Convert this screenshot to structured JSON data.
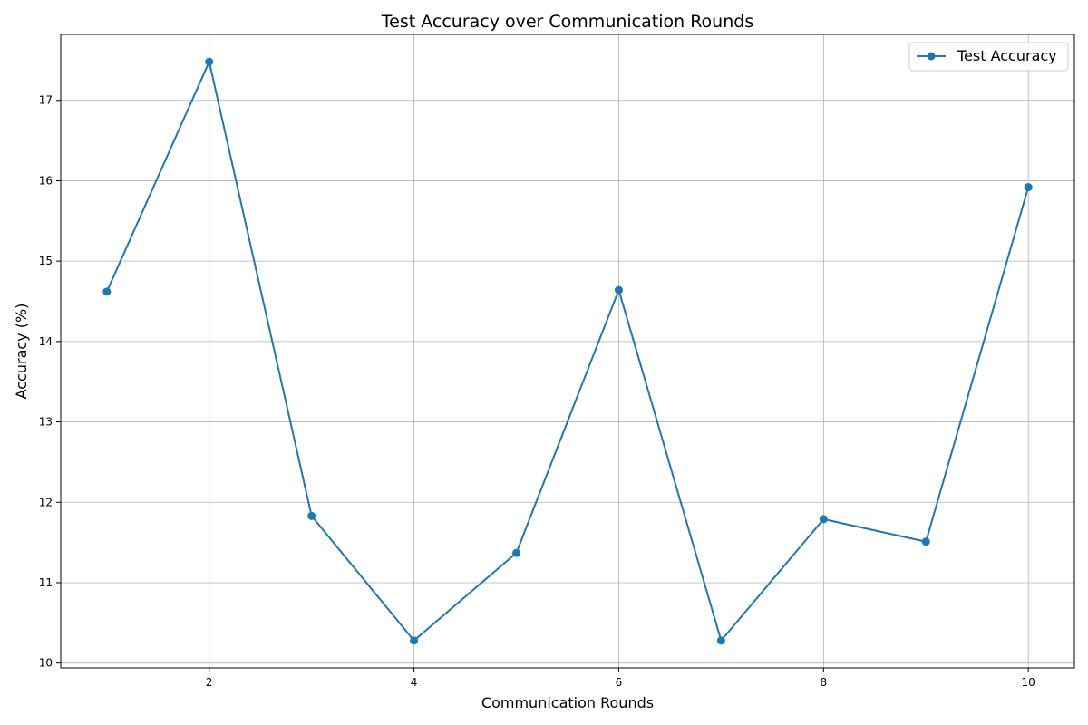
{
  "chart_data": {
    "type": "line",
    "title": "Test Accuracy over Communication Rounds",
    "xlabel": "Communication Rounds",
    "ylabel": "Accuracy (%)",
    "x": [
      1,
      2,
      3,
      4,
      5,
      6,
      7,
      8,
      9,
      10
    ],
    "series": [
      {
        "name": "Test Accuracy",
        "values": [
          14.62,
          17.48,
          11.83,
          10.28,
          11.37,
          14.64,
          10.28,
          11.79,
          11.51,
          15.92
        ],
        "color": "#1f77b4",
        "marker": "circle"
      }
    ],
    "xlim": [
      0.55,
      10.45
    ],
    "ylim": [
      9.94,
      17.82
    ],
    "xticks": [
      2,
      4,
      6,
      8,
      10
    ],
    "yticks": [
      10,
      11,
      12,
      13,
      14,
      15,
      16,
      17
    ],
    "grid": true,
    "legend_position": "top-right"
  }
}
